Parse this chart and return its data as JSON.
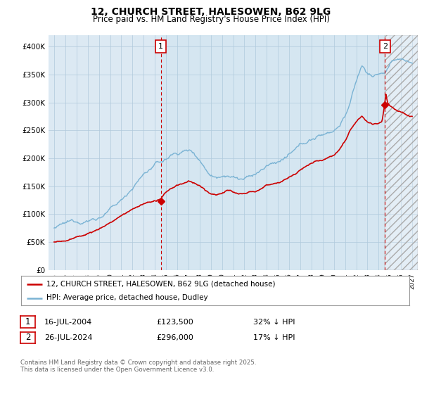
{
  "title": "12, CHURCH STREET, HALESOWEN, B62 9LG",
  "subtitle": "Price paid vs. HM Land Registry's House Price Index (HPI)",
  "hpi_color": "#7ab3d4",
  "price_color": "#cc0000",
  "annotation_color": "#cc0000",
  "background_color": "#ffffff",
  "chart_bg": "#dce9f3",
  "grid_color": "#b0c8dc",
  "ylim": [
    0,
    420000
  ],
  "yticks": [
    0,
    50000,
    100000,
    150000,
    200000,
    250000,
    300000,
    350000,
    400000
  ],
  "ytick_labels": [
    "£0",
    "£50K",
    "£100K",
    "£150K",
    "£200K",
    "£250K",
    "£300K",
    "£350K",
    "£400K"
  ],
  "sale1_price": 123500,
  "sale1_x": 2004.54,
  "sale2_price": 296000,
  "sale2_x": 2024.57,
  "legend_line1": "12, CHURCH STREET, HALESOWEN, B62 9LG (detached house)",
  "legend_line2": "HPI: Average price, detached house, Dudley",
  "footer": "Contains HM Land Registry data © Crown copyright and database right 2025.\nThis data is licensed under the Open Government Licence v3.0."
}
